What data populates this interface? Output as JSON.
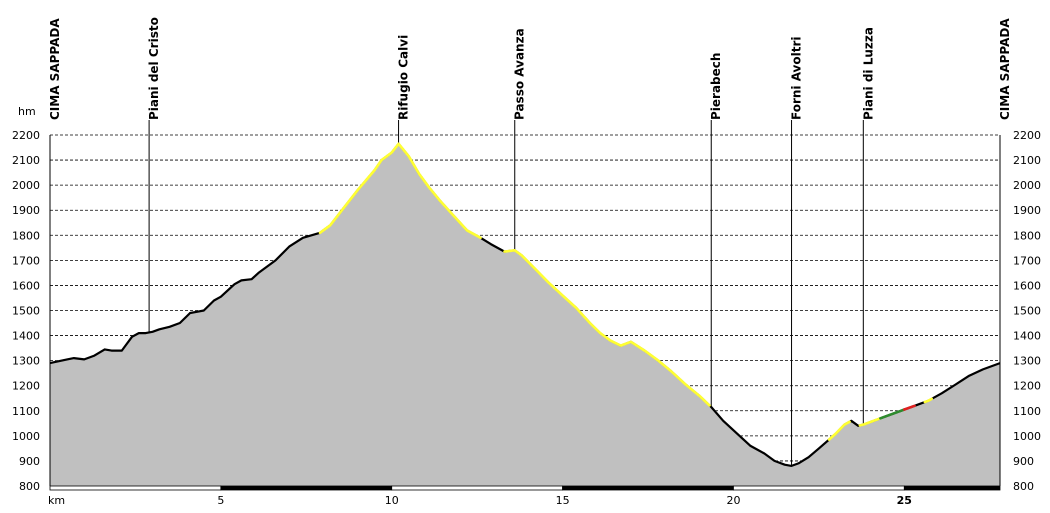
{
  "chart_data": {
    "type": "area",
    "title": "",
    "xlabel": "",
    "ylabel": "",
    "x_unit": "km",
    "y_unit": "hm",
    "xlim": [
      0,
      27.8
    ],
    "ylim": [
      800,
      2200
    ],
    "x_ticks": [
      5,
      10,
      15,
      20,
      25
    ],
    "y_ticks": [
      800,
      900,
      1000,
      1100,
      1200,
      1300,
      1400,
      1500,
      1600,
      1700,
      1800,
      1900,
      2000,
      2100,
      2200
    ],
    "grid": "horizontal-dashed",
    "fill_color": "#c0c0c0",
    "line_color": "#000000",
    "highlight_colors": {
      "yellow": "#ffff33",
      "green": "#2e8b2e",
      "red": "#e02020"
    },
    "waypoints": [
      {
        "name": "CIMA SAPPADA",
        "km": 0.0
      },
      {
        "name": "Piani del Cristo",
        "km": 2.9
      },
      {
        "name": "Rifugio Calvi",
        "km": 10.2
      },
      {
        "name": "Passo Avanza",
        "km": 13.6
      },
      {
        "name": "Pierabech",
        "km": 19.35
      },
      {
        "name": "Forni Avoltri",
        "km": 21.7
      },
      {
        "name": "Piani di Luzza",
        "km": 23.8
      },
      {
        "name": "CIMA SAPPADA",
        "km": 27.8
      }
    ],
    "series": [
      {
        "x": [
          0,
          0.5,
          0.7,
          1.0,
          1.3,
          1.6,
          1.8,
          2.1,
          2.4,
          2.6,
          2.8,
          3.0,
          3.2,
          3.5,
          3.8,
          4.1,
          4.3,
          4.5,
          4.8,
          5.0,
          5.2,
          5.4,
          5.6,
          5.9,
          6.1,
          6.4,
          6.6,
          7.0,
          7.4,
          7.9,
          8.2,
          8.6,
          9.0,
          9.5,
          9.7,
          10.0,
          10.2,
          10.5,
          10.8,
          11.1,
          11.4,
          11.8,
          12.2,
          12.6,
          12.9,
          13.3,
          13.6,
          13.8,
          14.2,
          14.6,
          15.0,
          15.4,
          15.8,
          16.1,
          16.4,
          16.7,
          17.0,
          17.4,
          17.8,
          18.2,
          18.6,
          19.0,
          19.35,
          19.7,
          20.1,
          20.5,
          20.9,
          21.2,
          21.5,
          21.7,
          21.9,
          22.2,
          22.5,
          22.8,
          23.0,
          23.25,
          23.45,
          23.65,
          23.8,
          24.1,
          24.5,
          24.9,
          25.3,
          25.7,
          26.1,
          26.5,
          26.9,
          27.3,
          27.8
        ],
        "y": [
          1290,
          1305,
          1310,
          1305,
          1320,
          1345,
          1340,
          1340,
          1395,
          1410,
          1410,
          1415,
          1425,
          1435,
          1450,
          1490,
          1495,
          1500,
          1540,
          1555,
          1580,
          1605,
          1620,
          1625,
          1650,
          1680,
          1700,
          1755,
          1790,
          1810,
          1840,
          1910,
          1980,
          2060,
          2100,
          2130,
          2165,
          2115,
          2045,
          1990,
          1940,
          1880,
          1820,
          1790,
          1765,
          1735,
          1740,
          1720,
          1665,
          1610,
          1560,
          1510,
          1450,
          1410,
          1380,
          1360,
          1375,
          1340,
          1300,
          1255,
          1205,
          1160,
          1115,
          1060,
          1010,
          960,
          930,
          900,
          885,
          880,
          890,
          915,
          950,
          985,
          1010,
          1045,
          1060,
          1040,
          1045,
          1060,
          1080,
          1100,
          1120,
          1140,
          1170,
          1205,
          1240,
          1265,
          1290
        ]
      }
    ],
    "highlights": [
      {
        "color": "yellow",
        "x_from": 7.9,
        "x_to": 12.6
      },
      {
        "color": "yellow",
        "x_from": 13.3,
        "x_to": 19.3
      },
      {
        "color": "yellow",
        "x_from": 22.8,
        "x_to": 23.4
      },
      {
        "color": "yellow",
        "x_from": 23.7,
        "x_to": 24.3
      },
      {
        "color": "green",
        "x_from": 24.3,
        "x_to": 25.0
      },
      {
        "color": "red",
        "x_from": 25.0,
        "x_to": 25.3
      },
      {
        "color": "yellow",
        "x_from": 25.6,
        "x_to": 25.8
      }
    ],
    "bold_x_tick": 25
  }
}
